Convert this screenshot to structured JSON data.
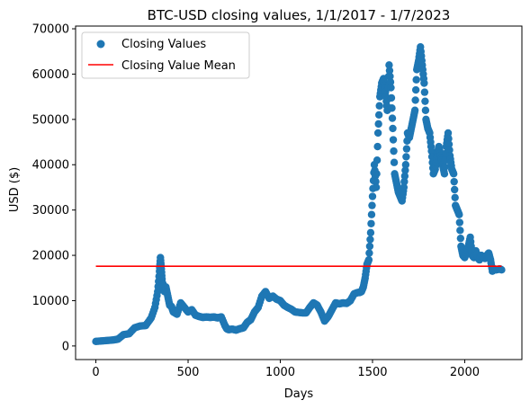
{
  "chart_data": {
    "type": "scatter",
    "title": "BTC-USD closing values, 1/1/2017 - 1/7/2023",
    "xlabel": "Days",
    "ylabel": "USD ($)",
    "xlim": [
      -110,
      2310
    ],
    "ylim": [
      -3000,
      70600
    ],
    "xticks": [
      0,
      500,
      1000,
      1500,
      2000
    ],
    "yticks": [
      0,
      10000,
      20000,
      30000,
      40000,
      50000,
      60000,
      70000
    ],
    "legend": {
      "placement": "top-left",
      "entries": [
        "Closing Values",
        "Closing Value Mean"
      ]
    },
    "grid": false,
    "colors": {
      "points": "#1f77b4",
      "mean": "#ff0000"
    },
    "series": [
      {
        "name": "Closing Values",
        "kind": "scatter",
        "x": [
          0,
          30,
          60,
          90,
          120,
          150,
          180,
          210,
          240,
          270,
          300,
          320,
          335,
          345,
          350,
          355,
          360,
          365,
          372,
          380,
          390,
          400,
          410,
          420,
          440,
          460,
          480,
          500,
          520,
          540,
          560,
          580,
          600,
          620,
          640,
          660,
          680,
          700,
          710,
          720,
          740,
          760,
          780,
          800,
          820,
          840,
          860,
          880,
          900,
          920,
          940,
          960,
          980,
          1000,
          1020,
          1040,
          1060,
          1080,
          1100,
          1120,
          1140,
          1160,
          1180,
          1200,
          1220,
          1240,
          1260,
          1280,
          1300,
          1320,
          1340,
          1360,
          1380,
          1400,
          1420,
          1430,
          1440,
          1450,
          1460,
          1470,
          1480,
          1490,
          1500,
          1510,
          1520,
          1530,
          1540,
          1550,
          1560,
          1570,
          1580,
          1590,
          1600,
          1610,
          1620,
          1630,
          1640,
          1650,
          1660,
          1670,
          1680,
          1690,
          1700,
          1710,
          1720,
          1730,
          1740,
          1750,
          1760,
          1770,
          1780,
          1790,
          1800,
          1810,
          1820,
          1830,
          1840,
          1850,
          1860,
          1870,
          1880,
          1890,
          1900,
          1910,
          1920,
          1930,
          1940,
          1950,
          1960,
          1970,
          1980,
          1990,
          2000,
          2010,
          2020,
          2030,
          2040,
          2050,
          2060,
          2070,
          2080,
          2090,
          2100,
          2110,
          2120,
          2130,
          2140,
          2150,
          2160,
          2170,
          2180,
          2190,
          2200
        ],
        "y": [
          1000,
          1100,
          1200,
          1300,
          1500,
          2500,
          2700,
          4000,
          4400,
          4500,
          6200,
          8500,
          12000,
          16500,
          19500,
          17000,
          14000,
          13500,
          12000,
          13000,
          11000,
          9000,
          8700,
          7500,
          7000,
          9500,
          8500,
          7500,
          8000,
          6800,
          6500,
          6300,
          6400,
          6300,
          6400,
          6200,
          6400,
          4500,
          3800,
          3600,
          3700,
          3500,
          3800,
          4000,
          5200,
          5800,
          7500,
          8500,
          11000,
          12000,
          10500,
          11000,
          10300,
          10000,
          9000,
          8500,
          8100,
          7500,
          7400,
          7300,
          7300,
          8500,
          9500,
          9000,
          7500,
          5500,
          6500,
          8000,
          9500,
          9300,
          9500,
          9400,
          10000,
          11500,
          11800,
          11800,
          12000,
          13000,
          15000,
          18000,
          19000,
          25000,
          33000,
          40000,
          35000,
          47000,
          55000,
          58000,
          59000,
          56000,
          52000,
          62000,
          57000,
          48000,
          38000,
          36000,
          34000,
          33000,
          32000,
          35000,
          40000,
          47000,
          46000,
          48000,
          50000,
          52000,
          61000,
          63000,
          66000,
          62000,
          58000,
          50000,
          48000,
          47000,
          43000,
          38000,
          39000,
          42000,
          44000,
          42000,
          40000,
          38000,
          44000,
          47000,
          42000,
          39000,
          38000,
          31000,
          30000,
          29000,
          22000,
          20000,
          19500,
          21000,
          22000,
          24000,
          20000,
          19500,
          21000,
          19500,
          19000,
          20000,
          19500,
          19300,
          20000,
          20500,
          19000,
          16500,
          17000,
          16800,
          16900,
          17000,
          16800
        ]
      },
      {
        "name": "Closing Value Mean",
        "kind": "line",
        "x": [
          0,
          2200
        ],
        "y": [
          17600,
          17600
        ]
      }
    ]
  }
}
